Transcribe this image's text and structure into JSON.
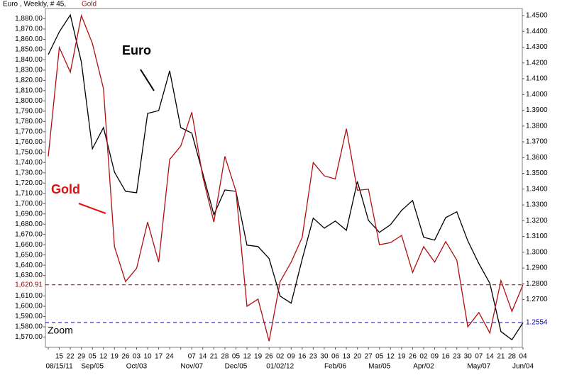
{
  "chart_data": {
    "type": "line",
    "title": "Euro , Weekly, # 45,",
    "title_series": "Gold",
    "annotations": [
      "Euro",
      "Gold",
      "Zoom"
    ],
    "categories": [
      null,
      "15",
      "22",
      "29",
      "05",
      "12",
      "19",
      "26",
      "03",
      "10",
      "17",
      "24",
      null,
      "07",
      "14",
      "21",
      "28",
      "05",
      "12",
      "19",
      "26",
      "02",
      "09",
      "16",
      "23",
      "30",
      "06",
      "13",
      "20",
      "27",
      "05",
      "12",
      "19",
      "26",
      "02",
      "09",
      "16",
      "23",
      "30",
      "07",
      "14",
      "21",
      "28",
      "04"
    ],
    "month_labels": [
      null,
      "08/15/11",
      null,
      null,
      "Sep/05",
      null,
      null,
      null,
      "Oct/03",
      null,
      null,
      null,
      null,
      "Nov/07",
      null,
      null,
      null,
      "Dec/05",
      null,
      null,
      null,
      "01/02/12",
      null,
      null,
      null,
      null,
      "Feb/06",
      null,
      null,
      null,
      "Mar/05",
      null,
      null,
      null,
      "Apr/02",
      null,
      null,
      null,
      null,
      "May/07",
      null,
      null,
      null,
      "Jun/04"
    ],
    "series": [
      {
        "name": "Euro",
        "color": "#000000",
        "axis": "y2",
        "values": [
          1.4253,
          1.4397,
          1.4504,
          1.4204,
          1.3656,
          1.379,
          1.3508,
          1.3386,
          1.3377,
          1.388,
          1.3898,
          1.415,
          1.379,
          1.3755,
          1.3499,
          1.3238,
          1.3395,
          1.3386,
          1.3045,
          1.3036,
          1.296,
          1.2722,
          1.2677,
          1.2955,
          1.3216,
          1.3153,
          1.3198,
          1.3139,
          1.3449,
          1.3202,
          1.3126,
          1.3175,
          1.3265,
          1.3328,
          1.3095,
          1.3077,
          1.322,
          1.3256,
          1.3072,
          1.2928,
          1.2803,
          1.2497,
          1.2445,
          1.2554
        ]
      },
      {
        "name": "Gold",
        "color": "#b01010",
        "axis": "y",
        "values": [
          1746,
          1852,
          1828,
          1883,
          1856,
          1812,
          1658,
          1624,
          1637,
          1682,
          1643,
          1743,
          1756,
          1789,
          1726,
          1682,
          1746,
          1712,
          1600,
          1607,
          1566,
          1624,
          1643,
          1667,
          1740,
          1727,
          1724,
          1773,
          1713,
          1714,
          1660,
          1662,
          1669,
          1633,
          1658,
          1643,
          1663,
          1645,
          1580,
          1594,
          1574,
          1625,
          1595,
          1620.91
        ]
      }
    ],
    "ylim": [
      1560,
      1890
    ],
    "yticks": [
      {
        "value": 1570,
        "label": "1,570.00"
      },
      {
        "value": 1580,
        "label": "1,580.00"
      },
      {
        "value": 1590,
        "label": "1,590.00"
      },
      {
        "value": 1600,
        "label": "1,600.00"
      },
      {
        "value": 1610,
        "label": "1,610.00"
      },
      {
        "value": 1630,
        "label": "1,630.00"
      },
      {
        "value": 1640,
        "label": "1,640.00"
      },
      {
        "value": 1650,
        "label": "1,650.00"
      },
      {
        "value": 1660,
        "label": "1,660.00"
      },
      {
        "value": 1670,
        "label": "1,670.00"
      },
      {
        "value": 1680,
        "label": "1,680.00"
      },
      {
        "value": 1690,
        "label": "1,690.00"
      },
      {
        "value": 1700,
        "label": "1,700.00"
      },
      {
        "value": 1710,
        "label": "1,710.00"
      },
      {
        "value": 1720,
        "label": "1,720.00"
      },
      {
        "value": 1730,
        "label": "1,730.00"
      },
      {
        "value": 1740,
        "label": "1,740.00"
      },
      {
        "value": 1750,
        "label": "1,750.00"
      },
      {
        "value": 1760,
        "label": "1,760.00"
      },
      {
        "value": 1770,
        "label": "1,770.00"
      },
      {
        "value": 1780,
        "label": "1,780.00"
      },
      {
        "value": 1790,
        "label": "1,790.00"
      },
      {
        "value": 1800,
        "label": "1,800.00"
      },
      {
        "value": 1810,
        "label": "1,810.00"
      },
      {
        "value": 1820,
        "label": "1,820.00"
      },
      {
        "value": 1830,
        "label": "1,830.00"
      },
      {
        "value": 1840,
        "label": "1,840.00"
      },
      {
        "value": 1850,
        "label": "1,850.00"
      },
      {
        "value": 1860,
        "label": "1,860.00"
      },
      {
        "value": 1870,
        "label": "1,870.00"
      },
      {
        "value": 1880,
        "label": "1,880.00"
      }
    ],
    "y2lim": [
      1.2397,
      1.4545
    ],
    "y2ticks": [
      {
        "value": 1.27,
        "label": "1.2700"
      },
      {
        "value": 1.28,
        "label": "1.2800"
      },
      {
        "value": 1.29,
        "label": "1.2900"
      },
      {
        "value": 1.3,
        "label": "1.3000"
      },
      {
        "value": 1.31,
        "label": "1.3100"
      },
      {
        "value": 1.32,
        "label": "1.3200"
      },
      {
        "value": 1.33,
        "label": "1.3300"
      },
      {
        "value": 1.34,
        "label": "1.3400"
      },
      {
        "value": 1.35,
        "label": "1.3500"
      },
      {
        "value": 1.36,
        "label": "1.3600"
      },
      {
        "value": 1.37,
        "label": "1.3700"
      },
      {
        "value": 1.38,
        "label": "1.3800"
      },
      {
        "value": 1.39,
        "label": "1.3900"
      },
      {
        "value": 1.4,
        "label": "1.4000"
      },
      {
        "value": 1.41,
        "label": "1.4100"
      },
      {
        "value": 1.42,
        "label": "1.4200"
      },
      {
        "value": 1.43,
        "label": "1.4300"
      },
      {
        "value": 1.44,
        "label": "1.4400"
      },
      {
        "value": 1.45,
        "label": "1.4500"
      }
    ],
    "hlines": [
      {
        "value": 1620.91,
        "label": "1,620.91",
        "axis": "y",
        "color": "#a00000"
      },
      {
        "value": 1.2554,
        "label": "1.2554",
        "axis": "y2",
        "color": "#0000c0"
      }
    ],
    "grid": false
  }
}
